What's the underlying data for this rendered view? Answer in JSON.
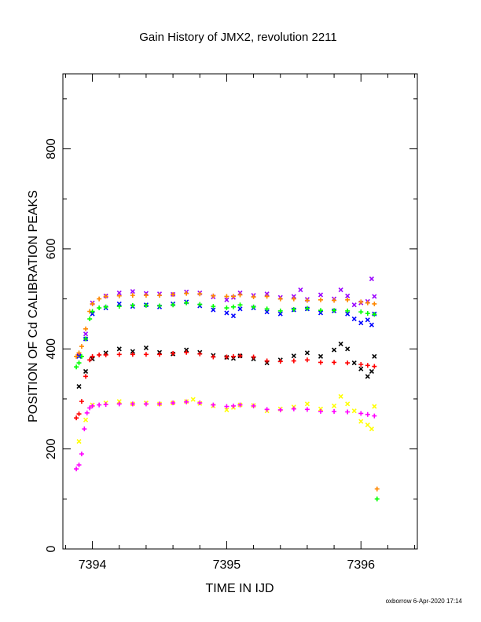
{
  "chart_data": {
    "type": "scatter",
    "title": "Gain History of JMX2, revolution 2211",
    "xlabel": "TIME IN IJD",
    "ylabel": "POSITION OF Cd CALIBRATION PEAKS",
    "xlim": [
      7393.78,
      7396.42
    ],
    "ylim": [
      0,
      950
    ],
    "x_ticks": [
      7394,
      7395,
      7396
    ],
    "y_ticks": [
      0,
      200,
      400,
      600,
      800
    ],
    "grid": false,
    "legend": "none",
    "footer": "oxborrow  6-Apr-2020 17:14",
    "series": [
      {
        "marker": "x",
        "color": "#9900ff",
        "points": [
          [
            7393.9,
            388
          ],
          [
            7393.95,
            430
          ],
          [
            7394.0,
            492
          ],
          [
            7394.1,
            506
          ],
          [
            7394.2,
            512
          ],
          [
            7394.3,
            515
          ],
          [
            7394.4,
            511
          ],
          [
            7394.5,
            510
          ],
          [
            7394.6,
            509
          ],
          [
            7394.7,
            514
          ],
          [
            7394.8,
            512
          ],
          [
            7394.9,
            504
          ],
          [
            7395.0,
            498
          ],
          [
            7395.05,
            503
          ],
          [
            7395.1,
            512
          ],
          [
            7395.2,
            507
          ],
          [
            7395.3,
            510
          ],
          [
            7395.4,
            503
          ],
          [
            7395.5,
            505
          ],
          [
            7395.55,
            518
          ],
          [
            7395.6,
            499
          ],
          [
            7395.7,
            508
          ],
          [
            7395.8,
            500
          ],
          [
            7395.85,
            518
          ],
          [
            7395.9,
            506
          ],
          [
            7395.95,
            488
          ],
          [
            7396.0,
            492
          ],
          [
            7396.05,
            495
          ],
          [
            7396.08,
            540
          ],
          [
            7396.1,
            505
          ]
        ]
      },
      {
        "marker": "x",
        "color": "#0000ff",
        "points": [
          [
            7393.9,
            385
          ],
          [
            7393.95,
            420
          ],
          [
            7394.0,
            470
          ],
          [
            7394.1,
            482
          ],
          [
            7394.2,
            490
          ],
          [
            7394.3,
            485
          ],
          [
            7394.4,
            488
          ],
          [
            7394.5,
            484
          ],
          [
            7394.6,
            490
          ],
          [
            7394.7,
            494
          ],
          [
            7394.8,
            486
          ],
          [
            7394.9,
            478
          ],
          [
            7395.0,
            472
          ],
          [
            7395.05,
            466
          ],
          [
            7395.1,
            480
          ],
          [
            7395.2,
            482
          ],
          [
            7395.3,
            474
          ],
          [
            7395.4,
            470
          ],
          [
            7395.5,
            478
          ],
          [
            7395.6,
            480
          ],
          [
            7395.7,
            472
          ],
          [
            7395.8,
            476
          ],
          [
            7395.9,
            470
          ],
          [
            7395.95,
            460
          ],
          [
            7396.0,
            452
          ],
          [
            7396.05,
            458
          ],
          [
            7396.08,
            448
          ],
          [
            7396.1,
            470
          ]
        ]
      },
      {
        "marker": "x",
        "color": "#000000",
        "points": [
          [
            7393.9,
            325
          ],
          [
            7393.95,
            355
          ],
          [
            7394.0,
            380
          ],
          [
            7394.1,
            392
          ],
          [
            7394.2,
            400
          ],
          [
            7394.3,
            395
          ],
          [
            7394.4,
            402
          ],
          [
            7394.5,
            393
          ],
          [
            7394.6,
            390
          ],
          [
            7394.7,
            398
          ],
          [
            7394.8,
            393
          ],
          [
            7394.9,
            387
          ],
          [
            7395.0,
            383
          ],
          [
            7395.05,
            381
          ],
          [
            7395.1,
            386
          ],
          [
            7395.2,
            380
          ],
          [
            7395.3,
            372
          ],
          [
            7395.4,
            378
          ],
          [
            7395.5,
            386
          ],
          [
            7395.6,
            392
          ],
          [
            7395.7,
            385
          ],
          [
            7395.8,
            398
          ],
          [
            7395.85,
            410
          ],
          [
            7395.9,
            400
          ],
          [
            7395.95,
            372
          ],
          [
            7396.0,
            360
          ],
          [
            7396.05,
            345
          ],
          [
            7396.08,
            355
          ],
          [
            7396.1,
            385
          ]
        ]
      },
      {
        "marker": "x",
        "color": "#ffff00",
        "points": [
          [
            7393.9,
            215
          ],
          [
            7393.95,
            258
          ],
          [
            7394.0,
            288
          ],
          [
            7394.1,
            292
          ],
          [
            7394.2,
            295
          ],
          [
            7394.3,
            290
          ],
          [
            7394.4,
            292
          ],
          [
            7394.5,
            290
          ],
          [
            7394.6,
            292
          ],
          [
            7394.7,
            295
          ],
          [
            7394.75,
            299
          ],
          [
            7394.8,
            291
          ],
          [
            7394.9,
            286
          ],
          [
            7395.0,
            278
          ],
          [
            7395.05,
            283
          ],
          [
            7395.1,
            288
          ],
          [
            7395.2,
            287
          ],
          [
            7395.3,
            276
          ],
          [
            7395.4,
            280
          ],
          [
            7395.5,
            284
          ],
          [
            7395.6,
            290
          ],
          [
            7395.7,
            280
          ],
          [
            7395.8,
            286
          ],
          [
            7395.85,
            305
          ],
          [
            7395.9,
            290
          ],
          [
            7395.95,
            276
          ],
          [
            7396.0,
            255
          ],
          [
            7396.05,
            248
          ],
          [
            7396.08,
            240
          ],
          [
            7396.1,
            285
          ]
        ]
      },
      {
        "marker": "+",
        "color": "#ff8800",
        "points": [
          [
            7393.88,
            385
          ],
          [
            7393.9,
            392
          ],
          [
            7393.92,
            405
          ],
          [
            7393.95,
            440
          ],
          [
            7393.98,
            475
          ],
          [
            7394.0,
            490
          ],
          [
            7394.05,
            500
          ],
          [
            7394.1,
            505
          ],
          [
            7394.2,
            506
          ],
          [
            7394.3,
            507
          ],
          [
            7394.4,
            507
          ],
          [
            7394.5,
            507
          ],
          [
            7394.6,
            509
          ],
          [
            7394.7,
            511
          ],
          [
            7394.8,
            510
          ],
          [
            7394.9,
            506
          ],
          [
            7395.0,
            505
          ],
          [
            7395.05,
            505
          ],
          [
            7395.1,
            508
          ],
          [
            7395.2,
            504
          ],
          [
            7395.3,
            505
          ],
          [
            7395.4,
            500
          ],
          [
            7395.5,
            500
          ],
          [
            7395.6,
            497
          ],
          [
            7395.7,
            498
          ],
          [
            7395.8,
            497
          ],
          [
            7395.9,
            498
          ],
          [
            7396.0,
            494
          ],
          [
            7396.05,
            492
          ],
          [
            7396.1,
            490
          ],
          [
            7396.12,
            120
          ]
        ]
      },
      {
        "marker": "+",
        "color": "#00ff00",
        "points": [
          [
            7393.88,
            364
          ],
          [
            7393.9,
            372
          ],
          [
            7393.92,
            385
          ],
          [
            7393.95,
            420
          ],
          [
            7393.98,
            460
          ],
          [
            7394.0,
            475
          ],
          [
            7394.05,
            482
          ],
          [
            7394.1,
            484
          ],
          [
            7394.2,
            485
          ],
          [
            7394.3,
            487
          ],
          [
            7394.4,
            487
          ],
          [
            7394.5,
            486
          ],
          [
            7394.6,
            488
          ],
          [
            7394.7,
            492
          ],
          [
            7394.8,
            489
          ],
          [
            7394.9,
            485
          ],
          [
            7395.0,
            482
          ],
          [
            7395.05,
            484
          ],
          [
            7395.1,
            488
          ],
          [
            7395.2,
            484
          ],
          [
            7395.3,
            480
          ],
          [
            7395.4,
            476
          ],
          [
            7395.5,
            479
          ],
          [
            7395.6,
            481
          ],
          [
            7395.7,
            477
          ],
          [
            7395.8,
            477
          ],
          [
            7395.9,
            476
          ],
          [
            7396.0,
            474
          ],
          [
            7396.05,
            471
          ],
          [
            7396.1,
            469
          ],
          [
            7396.12,
            100
          ]
        ]
      },
      {
        "marker": "+",
        "color": "#ff0000",
        "points": [
          [
            7393.88,
            262
          ],
          [
            7393.9,
            270
          ],
          [
            7393.92,
            295
          ],
          [
            7393.95,
            345
          ],
          [
            7393.98,
            378
          ],
          [
            7394.0,
            385
          ],
          [
            7394.05,
            388
          ],
          [
            7394.1,
            388
          ],
          [
            7394.2,
            389
          ],
          [
            7394.3,
            389
          ],
          [
            7394.4,
            389
          ],
          [
            7394.5,
            389
          ],
          [
            7394.6,
            391
          ],
          [
            7394.7,
            393
          ],
          [
            7394.8,
            390
          ],
          [
            7394.9,
            384
          ],
          [
            7395.0,
            384
          ],
          [
            7395.05,
            385
          ],
          [
            7395.1,
            386
          ],
          [
            7395.2,
            384
          ],
          [
            7395.3,
            376
          ],
          [
            7395.4,
            375
          ],
          [
            7395.5,
            376
          ],
          [
            7395.6,
            378
          ],
          [
            7395.7,
            373
          ],
          [
            7395.8,
            373
          ],
          [
            7395.9,
            372
          ],
          [
            7396.0,
            369
          ],
          [
            7396.05,
            367
          ],
          [
            7396.1,
            365
          ]
        ]
      },
      {
        "marker": "+",
        "color": "#ff00ff",
        "points": [
          [
            7393.88,
            160
          ],
          [
            7393.9,
            168
          ],
          [
            7393.92,
            190
          ],
          [
            7393.94,
            240
          ],
          [
            7393.96,
            272
          ],
          [
            7393.98,
            282
          ],
          [
            7394.0,
            286
          ],
          [
            7394.05,
            288
          ],
          [
            7394.1,
            289
          ],
          [
            7394.2,
            290
          ],
          [
            7394.3,
            290
          ],
          [
            7394.4,
            290
          ],
          [
            7394.5,
            290
          ],
          [
            7394.6,
            292
          ],
          [
            7394.7,
            294
          ],
          [
            7394.8,
            292
          ],
          [
            7394.9,
            288
          ],
          [
            7395.0,
            285
          ],
          [
            7395.05,
            286
          ],
          [
            7395.1,
            288
          ],
          [
            7395.2,
            286
          ],
          [
            7395.3,
            279
          ],
          [
            7395.4,
            278
          ],
          [
            7395.5,
            280
          ],
          [
            7395.6,
            279
          ],
          [
            7395.7,
            275
          ],
          [
            7395.8,
            275
          ],
          [
            7395.9,
            274
          ],
          [
            7396.0,
            271
          ],
          [
            7396.05,
            269
          ],
          [
            7396.1,
            266
          ]
        ]
      }
    ]
  }
}
